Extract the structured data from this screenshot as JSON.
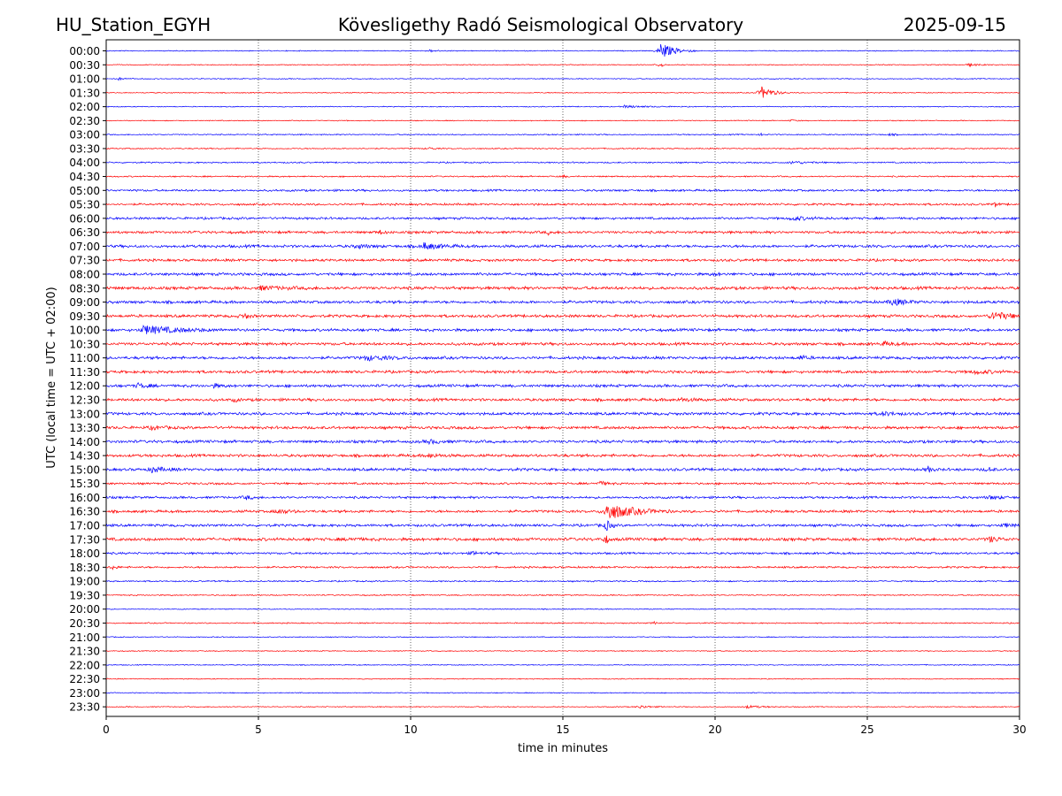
{
  "header": {
    "station": "HU_Station_EGYH",
    "observatory": "Kövesligethy Radó Seismological Observatory",
    "date": "2025-09-15"
  },
  "chart_data": {
    "type": "line",
    "title": "Kövesligethy Radó Seismological Observatory",
    "xlabel": "time in minutes",
    "ylabel": "UTC (local time = UTC + 02:00)",
    "xlim": [
      0,
      30
    ],
    "x_ticks": [
      "0",
      "5",
      "10",
      "15",
      "20",
      "25",
      "30"
    ],
    "grid": "vertical dotted lines at every 5 minutes",
    "series_colors": [
      "#0000ff",
      "#ff0000"
    ],
    "rows": [
      {
        "label": "00:00",
        "base_noise": 0.2,
        "bursts": [
          {
            "t": 18.2,
            "amp": 4.5,
            "dur": 1.2
          },
          {
            "t": 10.6,
            "amp": 0.6,
            "dur": 0.8
          }
        ]
      },
      {
        "label": "00:30",
        "base_noise": 0.2,
        "bursts": [
          {
            "t": 28.3,
            "amp": 0.7,
            "dur": 1.0
          },
          {
            "t": 18.2,
            "amp": 2.0,
            "dur": 0.2
          }
        ]
      },
      {
        "label": "01:00",
        "base_noise": 0.2,
        "bursts": [
          {
            "t": 0.4,
            "amp": 0.6,
            "dur": 0.6
          }
        ]
      },
      {
        "label": "01:30",
        "base_noise": 0.2,
        "bursts": [
          {
            "t": 21.5,
            "amp": 3.5,
            "dur": 1.0
          }
        ]
      },
      {
        "label": "02:00",
        "base_noise": 0.2,
        "bursts": [
          {
            "t": 17.0,
            "amp": 0.6,
            "dur": 2.0
          }
        ]
      },
      {
        "label": "02:30",
        "base_noise": 0.2,
        "bursts": [
          {
            "t": 22.5,
            "amp": 0.6,
            "dur": 0.4
          }
        ]
      },
      {
        "label": "03:00",
        "base_noise": 0.25,
        "bursts": [
          {
            "t": 21.5,
            "amp": 0.7,
            "dur": 0.2
          },
          {
            "t": 25.7,
            "amp": 0.6,
            "dur": 0.5
          }
        ]
      },
      {
        "label": "03:30",
        "base_noise": 0.25,
        "bursts": [
          {
            "t": 10.6,
            "amp": 0.6,
            "dur": 0.6
          }
        ]
      },
      {
        "label": "04:00",
        "base_noise": 0.3,
        "bursts": [
          {
            "t": 22.5,
            "amp": 0.7,
            "dur": 1.5
          }
        ]
      },
      {
        "label": "04:30",
        "base_noise": 0.3,
        "bursts": [
          {
            "t": 15.0,
            "amp": 0.6,
            "dur": 0.3
          }
        ]
      },
      {
        "label": "05:00",
        "base_noise": 0.45,
        "bursts": []
      },
      {
        "label": "05:30",
        "base_noise": 0.45,
        "bursts": [
          {
            "t": 29.2,
            "amp": 1.3,
            "dur": 0.2
          }
        ]
      },
      {
        "label": "06:00",
        "base_noise": 0.5,
        "bursts": [
          {
            "t": 22.5,
            "amp": 0.9,
            "dur": 1.5
          }
        ]
      },
      {
        "label": "06:30",
        "base_noise": 0.55,
        "bursts": [
          {
            "t": 9.0,
            "amp": 1.0,
            "dur": 0.3
          },
          {
            "t": 14.5,
            "amp": 1.0,
            "dur": 0.4
          }
        ]
      },
      {
        "label": "07:00",
        "base_noise": 0.6,
        "bursts": [
          {
            "t": 10.4,
            "amp": 1.8,
            "dur": 1.4
          },
          {
            "t": 8.2,
            "amp": 1.0,
            "dur": 1.0
          }
        ]
      },
      {
        "label": "07:30",
        "base_noise": 0.55,
        "bursts": []
      },
      {
        "label": "08:00",
        "base_noise": 0.6,
        "bursts": [
          {
            "t": 20.0,
            "amp": 0.9,
            "dur": 0.4
          }
        ]
      },
      {
        "label": "08:30",
        "base_noise": 0.65,
        "bursts": [
          {
            "t": 5.0,
            "amp": 0.9,
            "dur": 2.0
          }
        ]
      },
      {
        "label": "09:00",
        "base_noise": 0.6,
        "bursts": [
          {
            "t": 25.8,
            "amp": 1.8,
            "dur": 1.2
          }
        ]
      },
      {
        "label": "09:30",
        "base_noise": 0.6,
        "bursts": [
          {
            "t": 4.5,
            "amp": 1.6,
            "dur": 0.5
          },
          {
            "t": 29.1,
            "amp": 2.3,
            "dur": 1.6
          }
        ]
      },
      {
        "label": "10:00",
        "base_noise": 0.6,
        "bursts": [
          {
            "t": 1.2,
            "amp": 2.2,
            "dur": 3.0
          }
        ]
      },
      {
        "label": "10:30",
        "base_noise": 0.6,
        "bursts": [
          {
            "t": 25.5,
            "amp": 0.9,
            "dur": 1.0
          }
        ]
      },
      {
        "label": "11:00",
        "base_noise": 0.6,
        "bursts": [
          {
            "t": 8.5,
            "amp": 1.2,
            "dur": 2.0
          },
          {
            "t": 22.8,
            "amp": 1.1,
            "dur": 0.6
          }
        ]
      },
      {
        "label": "11:30",
        "base_noise": 0.6,
        "bursts": [
          {
            "t": 28.5,
            "amp": 0.9,
            "dur": 1.5
          }
        ]
      },
      {
        "label": "12:00",
        "base_noise": 0.6,
        "bursts": [
          {
            "t": 1.0,
            "amp": 1.1,
            "dur": 1.0
          },
          {
            "t": 3.5,
            "amp": 1.0,
            "dur": 0.6
          }
        ]
      },
      {
        "label": "12:30",
        "base_noise": 0.6,
        "bursts": [
          {
            "t": 18.8,
            "amp": 1.0,
            "dur": 1.0
          },
          {
            "t": 4.2,
            "amp": 1.0,
            "dur": 0.3
          }
        ]
      },
      {
        "label": "13:00",
        "base_noise": 0.6,
        "bursts": [
          {
            "t": 25.5,
            "amp": 1.0,
            "dur": 1.0
          }
        ]
      },
      {
        "label": "13:30",
        "base_noise": 0.6,
        "bursts": [
          {
            "t": 1.5,
            "amp": 0.9,
            "dur": 1.0
          }
        ]
      },
      {
        "label": "14:00",
        "base_noise": 0.6,
        "bursts": [
          {
            "t": 10.6,
            "amp": 1.0,
            "dur": 1.0
          }
        ]
      },
      {
        "label": "14:30",
        "base_noise": 0.6,
        "bursts": [
          {
            "t": 10.6,
            "amp": 1.0,
            "dur": 1.0
          }
        ]
      },
      {
        "label": "15:00",
        "base_noise": 0.6,
        "bursts": [
          {
            "t": 1.5,
            "amp": 1.4,
            "dur": 1.0
          },
          {
            "t": 27.0,
            "amp": 1.6,
            "dur": 0.3
          },
          {
            "t": 29.0,
            "amp": 1.2,
            "dur": 0.3
          }
        ]
      },
      {
        "label": "15:30",
        "base_noise": 0.45,
        "bursts": [
          {
            "t": 16.2,
            "amp": 1.1,
            "dur": 0.6
          }
        ]
      },
      {
        "label": "16:00",
        "base_noise": 0.5,
        "bursts": [
          {
            "t": 4.6,
            "amp": 1.1,
            "dur": 0.5
          },
          {
            "t": 29.0,
            "amp": 1.0,
            "dur": 1.0
          }
        ]
      },
      {
        "label": "16:30",
        "base_noise": 0.55,
        "bursts": [
          {
            "t": 16.4,
            "amp": 4.8,
            "dur": 2.2
          },
          {
            "t": 5.6,
            "amp": 1.2,
            "dur": 1.0
          }
        ]
      },
      {
        "label": "17:00",
        "base_noise": 0.55,
        "bursts": [
          {
            "t": 16.4,
            "amp": 3.5,
            "dur": 0.4
          },
          {
            "t": 29.5,
            "amp": 1.2,
            "dur": 0.6
          }
        ]
      },
      {
        "label": "17:30",
        "base_noise": 0.65,
        "bursts": [
          {
            "t": 16.4,
            "amp": 3.0,
            "dur": 0.2
          },
          {
            "t": 29.0,
            "amp": 1.5,
            "dur": 0.8
          },
          {
            "t": 8.0,
            "amp": 1.0,
            "dur": 0.6
          }
        ]
      },
      {
        "label": "18:00",
        "base_noise": 0.45,
        "bursts": [
          {
            "t": 12.0,
            "amp": 0.8,
            "dur": 1.0
          }
        ]
      },
      {
        "label": "18:30",
        "base_noise": 0.4,
        "bursts": [
          {
            "t": 0.2,
            "amp": 1.0,
            "dur": 0.4
          }
        ]
      },
      {
        "label": "19:00",
        "base_noise": 0.3,
        "bursts": []
      },
      {
        "label": "19:30",
        "base_noise": 0.25,
        "bursts": []
      },
      {
        "label": "20:00",
        "base_noise": 0.2,
        "bursts": []
      },
      {
        "label": "20:30",
        "base_noise": 0.25,
        "bursts": [
          {
            "t": 18.0,
            "amp": 0.6,
            "dur": 0.3
          }
        ]
      },
      {
        "label": "21:00",
        "base_noise": 0.2,
        "bursts": []
      },
      {
        "label": "21:30",
        "base_noise": 0.2,
        "bursts": []
      },
      {
        "label": "22:00",
        "base_noise": 0.2,
        "bursts": []
      },
      {
        "label": "22:30",
        "base_noise": 0.2,
        "bursts": []
      },
      {
        "label": "23:00",
        "base_noise": 0.2,
        "bursts": []
      },
      {
        "label": "23:30",
        "base_noise": 0.2,
        "bursts": [
          {
            "t": 17.5,
            "amp": 0.8,
            "dur": 1.0
          },
          {
            "t": 21.0,
            "amp": 0.7,
            "dur": 1.5
          }
        ]
      }
    ]
  }
}
